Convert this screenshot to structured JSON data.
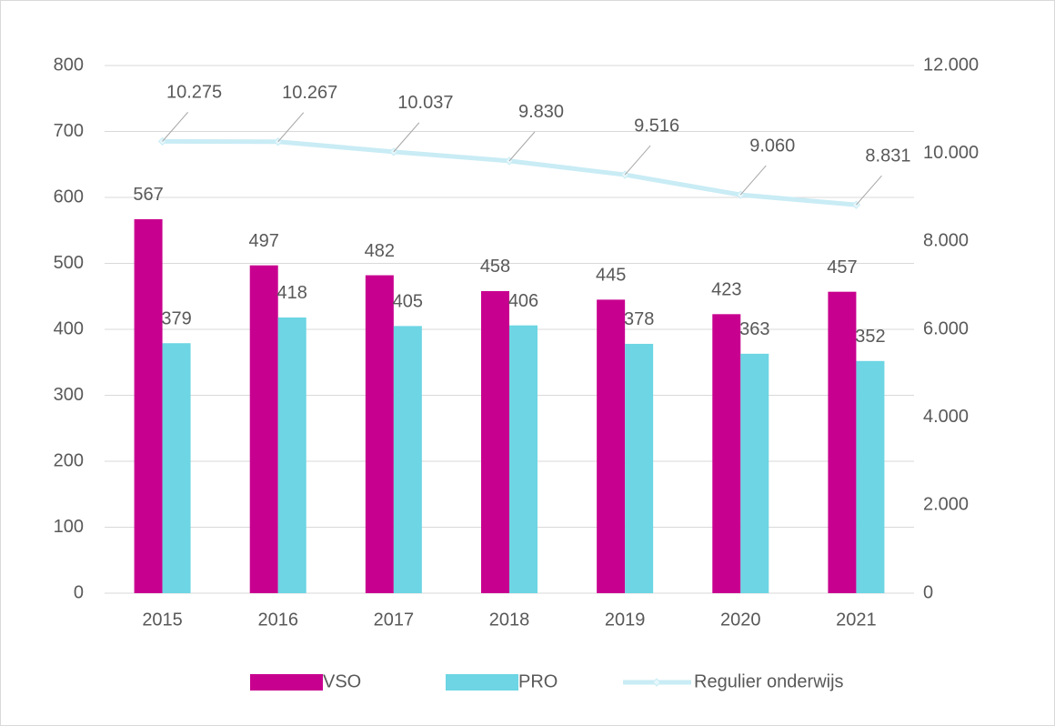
{
  "chart_data": {
    "type": "bar",
    "categories": [
      "2015",
      "2016",
      "2017",
      "2018",
      "2019",
      "2020",
      "2021"
    ],
    "series": [
      {
        "name": "VSO",
        "color": "#c8008f",
        "values": [
          567,
          497,
          482,
          458,
          445,
          423,
          457
        ]
      },
      {
        "name": "PRO",
        "color": "#6dd5e3",
        "values": [
          379,
          418,
          405,
          406,
          378,
          363,
          352
        ]
      },
      {
        "name": "Regulier onderwijs",
        "color": "#c9ecf5",
        "type": "line",
        "axis": "y2",
        "values": [
          10275,
          10267,
          10037,
          9830,
          9516,
          9060,
          8831
        ],
        "value_labels": [
          "10.275",
          "10.267",
          "10.037",
          "9.830",
          "9.516",
          "9.060",
          "8.831"
        ]
      }
    ],
    "ylim": [
      0,
      800
    ],
    "yticks": [
      0,
      100,
      200,
      300,
      400,
      500,
      600,
      700,
      800
    ],
    "y2lim": [
      0,
      12000
    ],
    "y2ticks": [
      0,
      {
        "value": 2000,
        "label": "2.000"
      },
      {
        "value": 4000,
        "label": "4.000"
      },
      {
        "value": 6000,
        "label": "6.000"
      },
      {
        "value": 8000,
        "label": "8.000"
      },
      {
        "value": 10000,
        "label": "10.000"
      },
      {
        "value": 12000,
        "label": "12.000"
      }
    ],
    "grid": true,
    "legend": "bottom"
  }
}
